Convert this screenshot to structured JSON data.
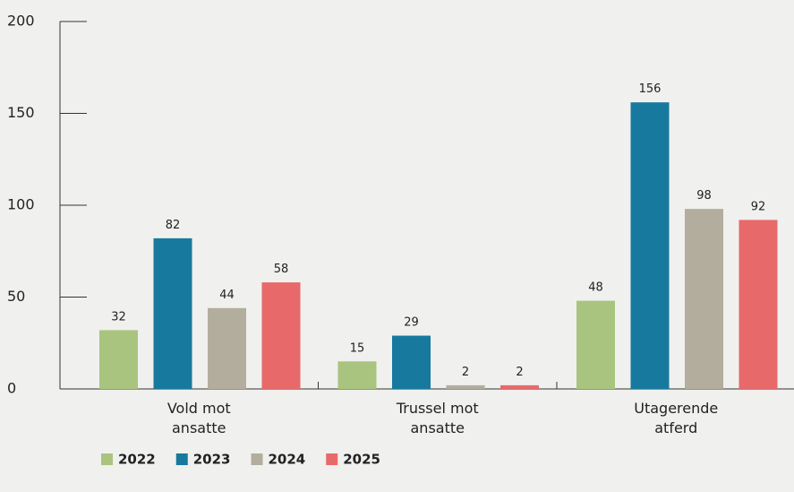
{
  "chart_data": {
    "type": "bar",
    "categories": [
      "Vold mot ansatte",
      "Trussel mot ansatte",
      "Utagerende atferd"
    ],
    "series": [
      {
        "name": "2022",
        "color": "#a9c47f",
        "values": [
          32,
          15,
          48
        ]
      },
      {
        "name": "2023",
        "color": "#17799e",
        "values": [
          82,
          29,
          156
        ]
      },
      {
        "name": "2024",
        "color": "#b3ad9d",
        "values": [
          44,
          2,
          98
        ]
      },
      {
        "name": "2025",
        "color": "#e8696a",
        "values": [
          58,
          2,
          92
        ]
      }
    ],
    "ylim": [
      0,
      200
    ],
    "yticks": [
      0,
      50,
      100,
      150,
      200
    ],
    "legend": "bottom-left"
  }
}
